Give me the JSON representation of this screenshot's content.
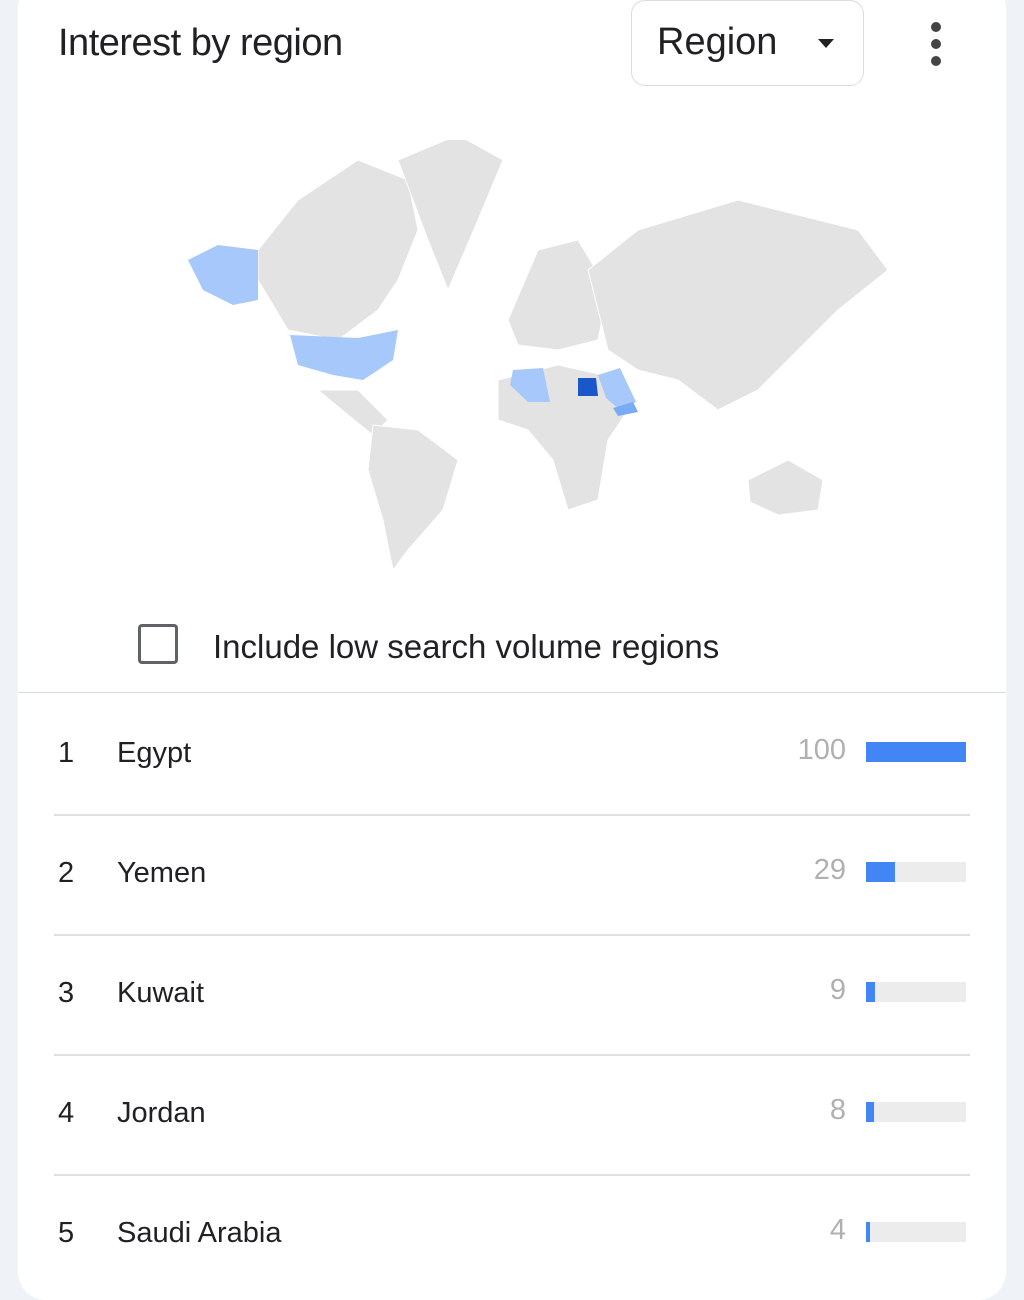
{
  "header": {
    "title": "Interest by region",
    "region_select": "Region"
  },
  "map": {
    "colors": {
      "land": "#e3e3e3",
      "low": "#a6c8fa",
      "mid": "#7baaf7",
      "high": "#1a57c8"
    },
    "highlighted": [
      {
        "region": "Egypt",
        "level": "high"
      },
      {
        "region": "United States",
        "level": "low"
      },
      {
        "region": "Algeria",
        "level": "low"
      },
      {
        "region": "Saudi Arabia",
        "level": "low"
      },
      {
        "region": "Yemen",
        "level": "mid"
      }
    ]
  },
  "low_volume": {
    "label": "Include low search volume regions",
    "checked": false
  },
  "bar_color": "#4285f4",
  "rows": [
    {
      "rank": "1",
      "name": "Egypt",
      "value": "100"
    },
    {
      "rank": "2",
      "name": "Yemen",
      "value": "29"
    },
    {
      "rank": "3",
      "name": "Kuwait",
      "value": "9"
    },
    {
      "rank": "4",
      "name": "Jordan",
      "value": "8"
    },
    {
      "rank": "5",
      "name": "Saudi Arabia",
      "value": "4"
    }
  ]
}
